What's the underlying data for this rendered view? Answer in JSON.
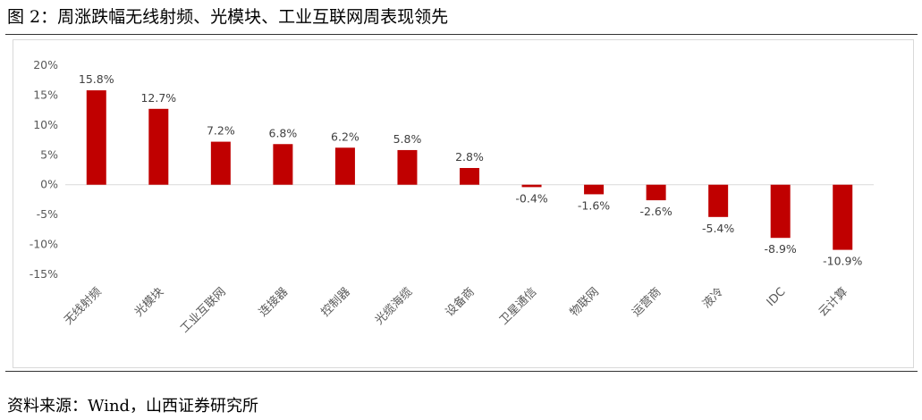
{
  "figure": {
    "title": "图 2：周涨跌幅无线射频、光模块、工业互联网周表现领先",
    "source": "资料来源：Wind，山西证券研究所"
  },
  "colors": {
    "bar": "#c00000",
    "axis": "#d9d9d9"
  },
  "chart_data": {
    "type": "bar",
    "title": "",
    "xlabel": "",
    "ylabel": "",
    "grid": false,
    "legend": "none",
    "categories": [
      "无线射频",
      "光模块",
      "工业互联网",
      "连接器",
      "控制器",
      "光缆海缆",
      "设备商",
      "卫星通信",
      "物联网",
      "运营商",
      "液冷",
      "IDC",
      "云计算"
    ],
    "values": [
      15.8,
      12.7,
      7.2,
      6.8,
      6.2,
      5.8,
      2.8,
      -0.4,
      -1.6,
      -2.6,
      -5.4,
      -8.9,
      -10.9
    ],
    "data_labels": [
      "15.8%",
      "12.7%",
      "7.2%",
      "6.8%",
      "6.2%",
      "5.8%",
      "2.8%",
      "-0.4%",
      "-1.6%",
      "-2.6%",
      "-5.4%",
      "-8.9%",
      "-10.9%"
    ],
    "yticks": [
      20,
      15,
      10,
      5,
      0,
      -5,
      -10,
      -15
    ],
    "ytick_labels": [
      "20%",
      "15%",
      "10%",
      "5%",
      "0%",
      "-5%",
      "-10%",
      "-15%"
    ],
    "ylim": [
      -15,
      20
    ]
  }
}
